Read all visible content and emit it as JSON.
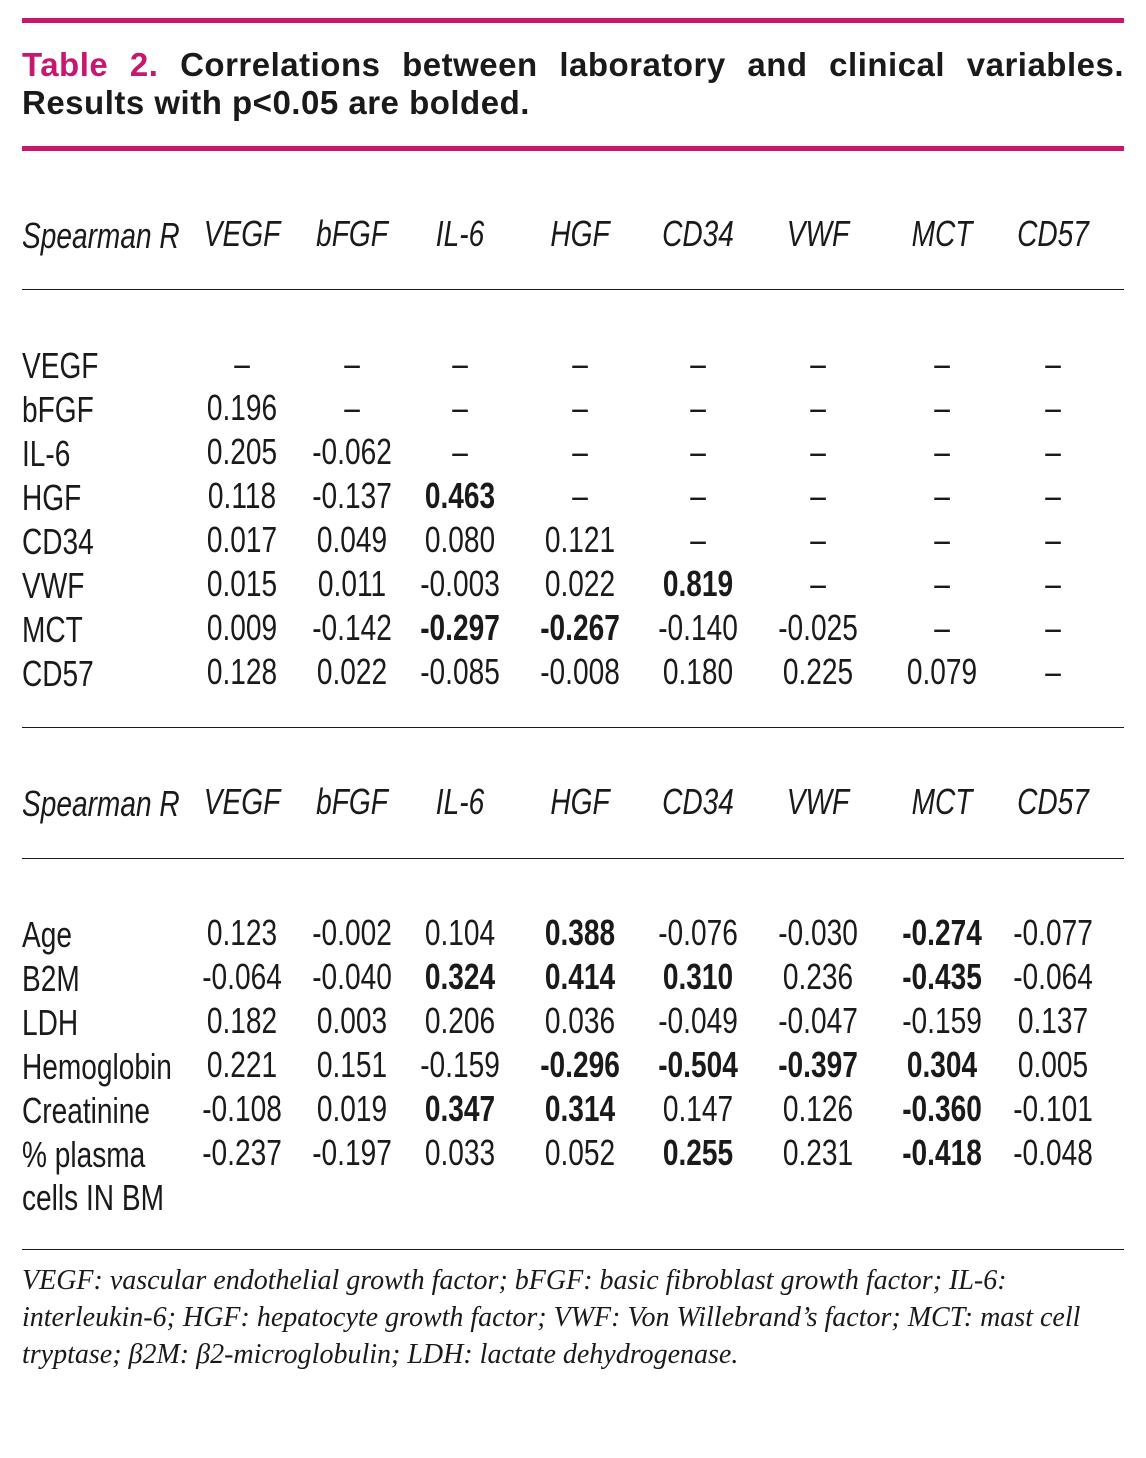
{
  "caption": {
    "label": "Table 2.",
    "text": "Correlations between laboratory and clinical variables. Results with p<0.05 are bolded."
  },
  "tables": [
    {
      "header": [
        "Spearman R",
        "VEGF",
        "bFGF",
        "IL-6",
        "HGF",
        "CD34",
        "VWF",
        "MCT",
        "CD57"
      ],
      "rows": [
        {
          "label": "VEGF",
          "cells": [
            "–",
            "–",
            "–",
            "–",
            "–",
            "–",
            "–",
            "–"
          ]
        },
        {
          "label": "bFGF",
          "cells": [
            "0.196",
            "–",
            "–",
            "–",
            "–",
            "–",
            "–",
            "–"
          ]
        },
        {
          "label": "IL-6",
          "cells": [
            "0.205",
            "-0.062",
            "–",
            "–",
            "–",
            "–",
            "–",
            "–"
          ]
        },
        {
          "label": "HGF",
          "cells": [
            "0.118",
            "-0.137",
            {
              "text": "0.463",
              "bold": true
            },
            "–",
            "–",
            "–",
            "–",
            "–"
          ]
        },
        {
          "label": "CD34",
          "cells": [
            "0.017",
            "0.049",
            "0.080",
            "0.121",
            "–",
            "–",
            "–",
            "–"
          ]
        },
        {
          "label": "VWF",
          "cells": [
            "0.015",
            "0.011",
            "-0.003",
            "0.022",
            {
              "text": "0.819",
              "bold": true
            },
            "–",
            "–",
            "–"
          ]
        },
        {
          "label": "MCT",
          "cells": [
            "0.009",
            "-0.142",
            {
              "text": "-0.297",
              "bold": true
            },
            {
              "text": "-0.267",
              "bold": true
            },
            "-0.140",
            "-0.025",
            "–",
            "–"
          ]
        },
        {
          "label": "CD57",
          "cells": [
            "0.128",
            "0.022",
            "-0.085",
            "-0.008",
            "0.180",
            "0.225",
            "0.079",
            "–"
          ]
        }
      ]
    },
    {
      "header": [
        "Spearman R",
        "VEGF",
        "bFGF",
        "IL-6",
        "HGF",
        "CD34",
        "VWF",
        "MCT",
        "CD57"
      ],
      "rows": [
        {
          "label": "Age",
          "cells": [
            "0.123",
            "-0.002",
            "0.104",
            {
              "text": "0.388",
              "bold": true
            },
            "-0.076",
            "-0.030",
            {
              "text": "-0.274",
              "bold": true
            },
            "-0.077"
          ]
        },
        {
          "label": "B2M",
          "cells": [
            "-0.064",
            "-0.040",
            {
              "text": "0.324",
              "bold": true
            },
            {
              "text": "0.414",
              "bold": true
            },
            {
              "text": "0.310",
              "bold": true
            },
            "0.236",
            {
              "text": "-0.435",
              "bold": true
            },
            "-0.064"
          ]
        },
        {
          "label": "LDH",
          "cells": [
            "0.182",
            "0.003",
            "0.206",
            "0.036",
            "-0.049",
            "-0.047",
            "-0.159",
            "0.137"
          ]
        },
        {
          "label": "Hemoglobin",
          "cells": [
            "0.221",
            "0.151",
            "-0.159",
            {
              "text": "-0.296",
              "bold": true
            },
            {
              "text": "-0.504",
              "bold": true
            },
            {
              "text": "-0.397",
              "bold": true
            },
            {
              "text": "0.304",
              "bold": true
            },
            "0.005"
          ]
        },
        {
          "label": "Creatinine",
          "cells": [
            "-0.108",
            "0.019",
            {
              "text": "0.347",
              "bold": true
            },
            {
              "text": "0.314",
              "bold": true
            },
            "0.147",
            "0.126",
            {
              "text": "-0.360",
              "bold": true
            },
            "-0.101"
          ]
        },
        {
          "label": "% plasma cells IN BM",
          "cells": [
            "-0.237",
            "-0.197",
            "0.033",
            "0.052",
            {
              "text": "0.255",
              "bold": true
            },
            "0.231",
            {
              "text": "-0.418",
              "bold": true
            },
            "-0.048"
          ]
        }
      ]
    }
  ],
  "footnote": "VEGF: vascular endothelial growth factor; bFGF: basic fibroblast growth factor; IL-6: interleukin-6; HGF: hepatocyte growth factor; VWF: Von Willebrand’s factor; MCT: mast cell tryptase; β2M: β2-microglobulin; LDH: lactate dehydrogenase."
}
